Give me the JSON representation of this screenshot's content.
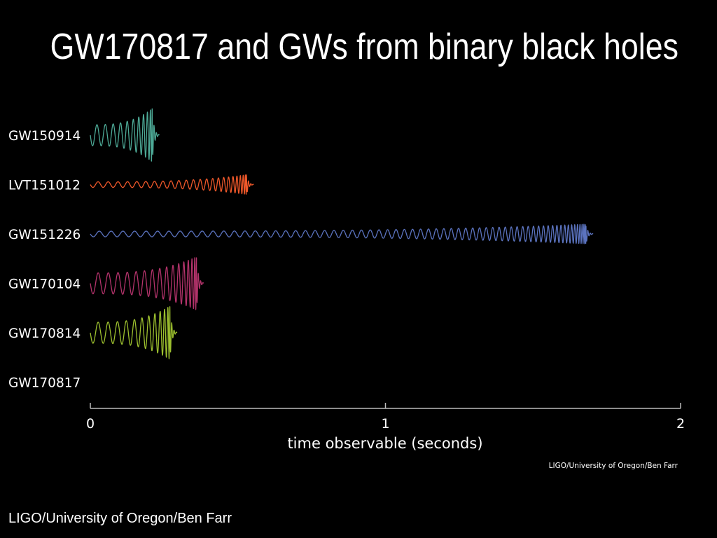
{
  "slide": {
    "title": "GW170817 and GWs from binary black holes",
    "footer_credit": "LIGO/University of Oregon/Ben Farr"
  },
  "chart_data": {
    "type": "line",
    "title": "",
    "xlabel": "time observable (seconds)",
    "ylabel": "",
    "xlim": [
      0,
      2
    ],
    "xticks": [
      0,
      1,
      2
    ],
    "xtick_labels": [
      "0",
      "1",
      "2"
    ],
    "credit": "LIGO/University of Oregon/Ben Farr",
    "grid": false,
    "series": [
      {
        "name": "GW150914",
        "duration": 0.21,
        "cycles": 11,
        "color": "#4da996"
      },
      {
        "name": "LVT151012",
        "duration": 0.53,
        "cycles": 24,
        "color": "#f0582a"
      },
      {
        "name": "GW151226",
        "duration": 1.68,
        "cycles": 66,
        "color": "#5b73bf"
      },
      {
        "name": "GW170104",
        "duration": 0.36,
        "cycles": 16,
        "color": "#b3336b"
      },
      {
        "name": "GW170814",
        "duration": 0.27,
        "cycles": 12,
        "color": "#9cbf2e"
      },
      {
        "name": "GW170817",
        "duration": null,
        "cycles": null,
        "color": "#ffffff"
      }
    ]
  }
}
